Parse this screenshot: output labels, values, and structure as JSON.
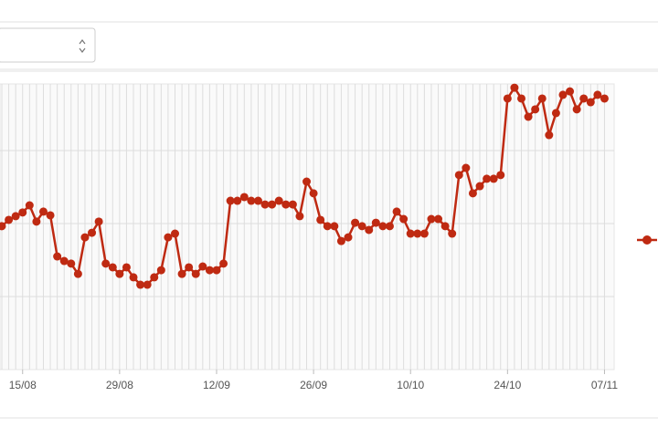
{
  "chart_data": {
    "type": "line",
    "categories": [
      null,
      null,
      null,
      "15/08",
      null,
      null,
      null,
      null,
      null,
      null,
      null,
      null,
      null,
      null,
      null,
      null,
      null,
      "29/08",
      null,
      null,
      null,
      null,
      null,
      null,
      null,
      null,
      null,
      null,
      null,
      null,
      null,
      "12/09",
      null,
      null,
      null,
      null,
      null,
      null,
      null,
      null,
      null,
      null,
      null,
      null,
      null,
      "26/09",
      null,
      null,
      null,
      null,
      null,
      null,
      null,
      null,
      null,
      null,
      null,
      null,
      null,
      "10/10",
      null,
      null,
      null,
      null,
      null,
      null,
      null,
      null,
      null,
      null,
      null,
      null,
      null,
      "24/10",
      null,
      null,
      null,
      null,
      null,
      null,
      null,
      null,
      null,
      null,
      null,
      null,
      null,
      "07/11"
    ],
    "series": [
      {
        "color": "#bf2a12",
        "values": [
          50.2,
          52.4,
          53.7,
          55.0,
          57.5,
          51.8,
          55.3,
          54.0,
          39.6,
          38.0,
          37.1,
          33.5,
          46.3,
          47.9,
          51.8,
          37.1,
          35.8,
          33.5,
          35.8,
          32.3,
          29.7,
          29.7,
          32.3,
          34.8,
          46.3,
          47.6,
          33.5,
          35.8,
          33.5,
          36.1,
          34.8,
          34.8,
          37.1,
          59.1,
          59.1,
          60.4,
          59.1,
          59.1,
          57.8,
          57.8,
          59.1,
          57.8,
          57.8,
          53.7,
          65.8,
          61.7,
          52.4,
          50.2,
          50.2,
          45.0,
          46.3,
          51.4,
          50.2,
          48.9,
          51.4,
          50.2,
          50.2,
          55.3,
          52.7,
          47.6,
          47.6,
          47.6,
          52.7,
          52.7,
          50.2,
          47.6,
          68.1,
          70.6,
          61.7,
          64.2,
          66.8,
          66.8,
          68.1,
          94.9,
          98.7,
          94.9,
          88.5,
          91.1,
          94.9,
          82.1,
          89.8,
          96.2,
          97.4,
          91.1,
          94.9,
          93.6,
          96.2,
          94.9
        ]
      }
    ],
    "ylim": [
      0,
      100
    ]
  }
}
